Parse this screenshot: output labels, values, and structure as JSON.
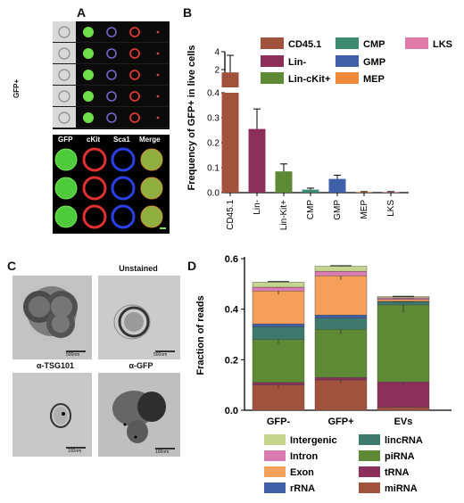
{
  "panels": {
    "A": {
      "letter": "A",
      "gfp_label": "GFP+",
      "channel_labels": [
        "GFP",
        "cKit",
        "Sca1",
        "Merge"
      ]
    },
    "B": {
      "letter": "B"
    },
    "C": {
      "letter": "C",
      "unstained_label": "Unstained",
      "tsg_label": "α-TSG101",
      "gfp_label": "α-GFP",
      "scalebars": [
        "500nm",
        "500nm",
        "100nm",
        "100nm"
      ]
    },
    "D": {
      "letter": "D"
    }
  },
  "colors": {
    "CD45.1": "#a0523c",
    "Lin-": "#8c2f5a",
    "Lin-cKit+": "#5e8a35",
    "CMP": "#3d8a72",
    "GMP": "#3f5fa8",
    "MEP": "#ee8a3a",
    "LKS": "#e07aa8",
    "miRNA": "#a0523c",
    "tRNA": "#8c2f5a",
    "piRNA": "#5e8a35",
    "lincRNA": "#3d7a6c",
    "rRNA": "#3f5fa8",
    "Exon": "#f4a05a",
    "Intron": "#d97ab0",
    "Intergenic": "#c5d68c"
  },
  "chart_data": [
    {
      "type": "bar",
      "panel": "B",
      "ylabel": "Frequency of GFP+ in live cells",
      "xlabel": "",
      "categories": [
        "CD45.1",
        "Lin-",
        "Lin-Kit+",
        "CMP",
        "GMP",
        "MEP",
        "LKS"
      ],
      "values": [
        2.2,
        0.255,
        0.085,
        0.012,
        0.055,
        0.002,
        0.002
      ],
      "errors": [
        0.8,
        0.08,
        0.03,
        0.006,
        0.015,
        0.002,
        0.002
      ],
      "ylim": [
        0,
        3
      ],
      "axis_break": [
        0.4,
        1.5
      ],
      "lower_ticks": [
        "0.0",
        "0.1",
        "0.2",
        "0.3",
        "0.4"
      ],
      "upper_ticks": [
        "2",
        "4"
      ],
      "legend": [
        "CD45.1",
        "Lin-",
        "Lin-cKit+",
        "CMP",
        "GMP",
        "MEP",
        "LKS"
      ],
      "legend_position": "top-right"
    },
    {
      "type": "bar",
      "stacked": true,
      "panel": "D",
      "ylabel": "Fraction of reads",
      "xlabel": "",
      "categories": [
        "GFP-",
        "GFP+",
        "EVs"
      ],
      "ylim": [
        0,
        0.6
      ],
      "ticks": [
        "0.0",
        "0.2",
        "0.4",
        "0.6"
      ],
      "series": [
        {
          "name": "miRNA",
          "values": [
            0.1,
            0.12,
            0.012
          ]
        },
        {
          "name": "tRNA",
          "values": [
            0.01,
            0.01,
            0.1
          ]
        },
        {
          "name": "piRNA",
          "values": [
            0.17,
            0.19,
            0.305
          ]
        },
        {
          "name": "lincRNA",
          "values": [
            0.05,
            0.045,
            0.012
          ]
        },
        {
          "name": "rRNA",
          "values": [
            0.012,
            0.012,
            0.002
          ]
        },
        {
          "name": "Exon",
          "values": [
            0.13,
            0.155,
            0.008
          ]
        },
        {
          "name": "Intron",
          "values": [
            0.015,
            0.018,
            0.006
          ]
        },
        {
          "name": "Intergenic",
          "values": [
            0.02,
            0.02,
            0.005
          ]
        }
      ],
      "legend": [
        "Intergenic",
        "lincRNA",
        "Intron",
        "piRNA",
        "Exon",
        "tRNA",
        "rRNA",
        "miRNA"
      ],
      "legend_position": "bottom"
    }
  ]
}
